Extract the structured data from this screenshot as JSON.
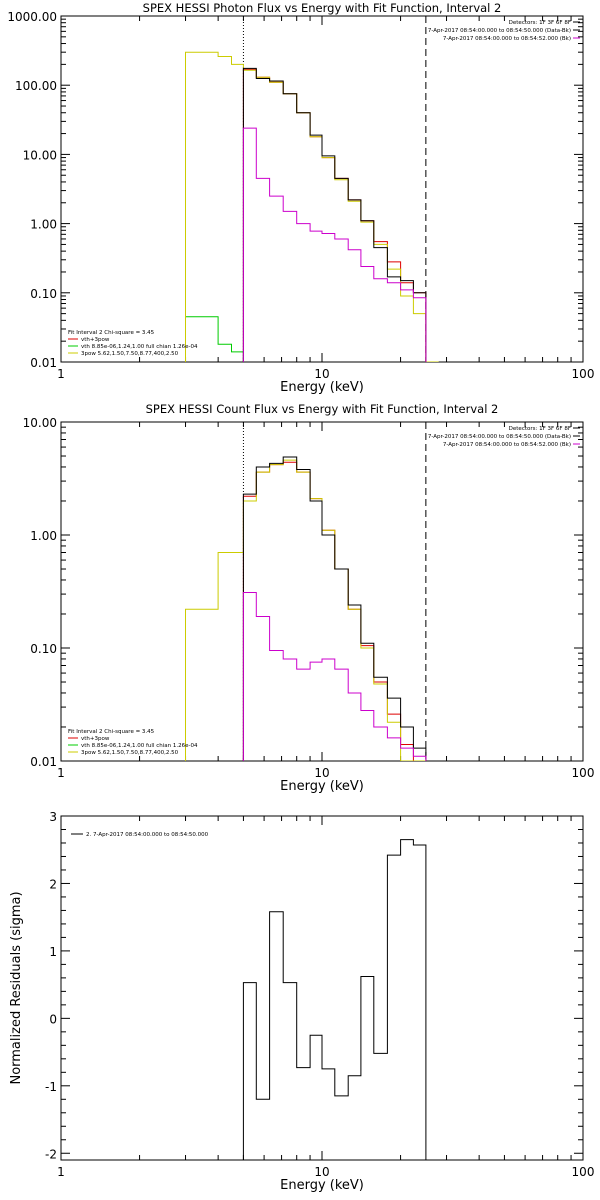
{
  "chart_data": [
    {
      "type": "line",
      "title": "SPEX HESSI Photon Flux vs Energy with Fit Function, Interval 2",
      "xlabel": "Energy (keV)",
      "ylabel": "",
      "xscale": "log",
      "yscale": "log",
      "xlim": [
        1,
        100
      ],
      "ylim": [
        0.01,
        1000
      ],
      "x_ticks": [
        {
          "value": 1,
          "label": "1"
        },
        {
          "value": 10,
          "label": "10"
        },
        {
          "value": 100,
          "label": "100"
        }
      ],
      "y_ticks": [
        {
          "value": 0.01,
          "label": "0.01"
        },
        {
          "value": 0.1,
          "label": "0.10"
        },
        {
          "value": 1,
          "label": "1.00"
        },
        {
          "value": 10,
          "label": "10.00"
        },
        {
          "value": 100,
          "label": "100.00"
        },
        {
          "value": 1000,
          "label": "1000.00"
        }
      ],
      "vlines": [
        {
          "x": 5.0,
          "style": "dotted",
          "color": "#000000"
        },
        {
          "x": 25.0,
          "style": "dashed",
          "color": "#000000"
        }
      ],
      "header_right": [
        {
          "text": "Detectors: 1F 3F 6F 8F",
          "color": "#000000"
        },
        {
          "text": "7-Apr-2017 08:54:00.000 to 08:54:50.000 (Data-Bk)",
          "color": "#000000"
        },
        {
          "text": "7-Apr-2017 08:54:00.000 to 08:54:52.000 (Bk)",
          "color": "#cc00cc"
        }
      ],
      "legend_title": "Fit Interval 2   Chi-square = 3.45",
      "legend_position": "bottom-left",
      "edges": [
        3.0,
        3.5,
        4.0,
        4.5,
        5.0,
        5.6,
        6.3,
        7.1,
        8.0,
        9.0,
        10.0,
        11.2,
        12.6,
        14.1,
        15.8,
        17.8,
        20.0,
        22.4,
        25.0,
        28.0
      ],
      "series": [
        {
          "name": "vth+3pow",
          "color": "#dd0000",
          "style": "step",
          "values": [
            null,
            null,
            null,
            null,
            170,
            130,
            110,
            75,
            40,
            18,
            9,
            4.5,
            2.2,
            1.1,
            0.55,
            0.28,
            0.14,
            0.1,
            null
          ]
        },
        {
          "name": "vth 8.85e-06,1.24,1.00  full chian 1.26e-04",
          "color": "#00cc00",
          "style": "step",
          "values": [
            0.045,
            0.045,
            0.018,
            0.014,
            null,
            null,
            null,
            null,
            null,
            null,
            null,
            null,
            null,
            null,
            null,
            null,
            null,
            null,
            null
          ]
        },
        {
          "name": "3pow 5.62,1.50,7.50,8.77,400,2.50",
          "color": "#cccc00",
          "style": "step",
          "values": [
            300,
            300,
            260,
            200,
            165,
            130,
            110,
            75,
            40,
            18,
            9,
            4.3,
            2.1,
            1.05,
            0.5,
            0.22,
            0.09,
            0.05,
            0.01
          ]
        },
        {
          "name": "Data-Bk",
          "color": "#000000",
          "style": "step",
          "values": [
            null,
            null,
            null,
            null,
            175,
            125,
            115,
            75,
            40,
            19,
            9.5,
            4.5,
            2.2,
            1.1,
            0.45,
            0.17,
            0.15,
            0.1,
            null
          ]
        },
        {
          "name": "Bk",
          "color": "#cc00cc",
          "style": "step",
          "values": [
            null,
            null,
            null,
            null,
            24,
            4.5,
            2.5,
            1.5,
            1.0,
            0.78,
            0.72,
            0.6,
            0.42,
            0.24,
            0.16,
            0.14,
            0.11,
            0.085,
            null
          ]
        }
      ],
      "legend": [
        {
          "text": "vth+3pow",
          "color": "#dd0000"
        },
        {
          "text": "vth 8.85e-06,1.24,1.00  full chian 1.26e-04",
          "color": "#00cc00"
        },
        {
          "text": "3pow 5.62,1.50,7.50,8.77,400,2.50",
          "color": "#cccc00"
        }
      ]
    },
    {
      "type": "line",
      "title": "SPEX HESSI Count Flux vs Energy with Fit Function, Interval 2",
      "xlabel": "Energy (keV)",
      "ylabel": "",
      "xscale": "log",
      "yscale": "log",
      "xlim": [
        1,
        100
      ],
      "ylim": [
        0.01,
        10
      ],
      "x_ticks": [
        {
          "value": 1,
          "label": "1"
        },
        {
          "value": 10,
          "label": "10"
        },
        {
          "value": 100,
          "label": "100"
        }
      ],
      "y_ticks": [
        {
          "value": 0.01,
          "label": "0.01"
        },
        {
          "value": 0.1,
          "label": "0.10"
        },
        {
          "value": 1,
          "label": "1.00"
        },
        {
          "value": 10,
          "label": "10.00"
        }
      ],
      "vlines": [
        {
          "x": 5.0,
          "style": "dotted",
          "color": "#000000"
        },
        {
          "x": 25.0,
          "style": "dashed",
          "color": "#000000"
        }
      ],
      "header_right": [
        {
          "text": "Detectors: 1F 3F 6F 8F",
          "color": "#000000"
        },
        {
          "text": "7-Apr-2017 08:54:00.000 to 08:54:50.000 (Data-Bk)",
          "color": "#000000"
        },
        {
          "text": "7-Apr-2017 08:54:00.000 to 08:54:52.000 (Bk)",
          "color": "#cc00cc"
        }
      ],
      "legend_title": "Fit Interval 2   Chi-square = 3.45",
      "legend_position": "bottom-left",
      "edges": [
        3.0,
        4.0,
        5.0,
        5.6,
        6.3,
        7.1,
        8.0,
        9.0,
        10.0,
        11.2,
        12.6,
        14.1,
        15.8,
        17.8,
        20.0,
        22.4,
        25.0
      ],
      "series": [
        {
          "name": "vth+3pow",
          "color": "#dd0000",
          "style": "step",
          "values": [
            null,
            null,
            2.2,
            3.6,
            4.2,
            4.4,
            3.6,
            2.1,
            1.1,
            0.5,
            0.22,
            0.105,
            0.05,
            0.026,
            0.014,
            0.01
          ]
        },
        {
          "name": "vth 8.85e-06,1.24,1.00  full chian 1.26e-04",
          "color": "#00cc00",
          "style": "step",
          "values": [
            null,
            null,
            null,
            null,
            null,
            null,
            null,
            null,
            null,
            null,
            null,
            null,
            null,
            null,
            null,
            null
          ]
        },
        {
          "name": "3pow 5.62,1.50,7.50,8.77,400,2.50",
          "color": "#cccc00",
          "style": "step",
          "values": [
            0.22,
            0.7,
            2.0,
            3.6,
            4.2,
            4.6,
            3.6,
            2.1,
            1.1,
            0.5,
            0.22,
            0.1,
            0.048,
            0.022,
            0.009,
            0.006
          ]
        },
        {
          "name": "Data-Bk",
          "color": "#000000",
          "style": "step",
          "values": [
            null,
            null,
            2.3,
            4.0,
            4.3,
            4.9,
            3.8,
            2.0,
            1.0,
            0.5,
            0.24,
            0.11,
            0.055,
            0.036,
            0.02,
            0.013
          ]
        },
        {
          "name": "Bk",
          "color": "#cc00cc",
          "style": "step",
          "values": [
            null,
            null,
            0.31,
            0.19,
            0.095,
            0.08,
            0.065,
            0.075,
            0.08,
            0.065,
            0.04,
            0.028,
            0.02,
            0.016,
            0.013,
            0.011
          ]
        }
      ],
      "legend": [
        {
          "text": "vth+3pow",
          "color": "#dd0000"
        },
        {
          "text": "vth 8.85e-06,1.24,1.00  full chian 1.26e-04",
          "color": "#00cc00"
        },
        {
          "text": "3pow 5.62,1.50,7.50,8.77,400,2.50",
          "color": "#cccc00"
        }
      ]
    },
    {
      "type": "line",
      "title": "",
      "xlabel": "Energy (keV)",
      "ylabel": "Normalized Residuals (sigma)",
      "xscale": "log",
      "yscale": "linear",
      "xlim": [
        1,
        100
      ],
      "ylim": [
        -2.1,
        3.0
      ],
      "x_ticks": [
        {
          "value": 1,
          "label": "1"
        },
        {
          "value": 10,
          "label": "10"
        },
        {
          "value": 100,
          "label": "100"
        }
      ],
      "y_ticks": [
        {
          "value": -2,
          "label": "-2"
        },
        {
          "value": -1,
          "label": "-1"
        },
        {
          "value": 0,
          "label": "0"
        },
        {
          "value": 1,
          "label": "1"
        },
        {
          "value": 2,
          "label": "2"
        },
        {
          "value": 3,
          "label": "3"
        }
      ],
      "vlines": [],
      "header_right": [],
      "legend_title": "",
      "legend_position": "top-left",
      "edges": [
        5.0,
        5.6,
        6.3,
        7.1,
        8.0,
        9.0,
        10.0,
        11.2,
        12.6,
        14.1,
        15.8,
        17.8,
        20.0,
        22.4,
        25.0
      ],
      "series": [
        {
          "name": "2.  7-Apr-2017 08:54:00.000 to 08:54:50.000",
          "color": "#000000",
          "style": "step",
          "values": [
            0.53,
            -1.2,
            1.58,
            0.53,
            -0.73,
            -0.25,
            -0.75,
            -1.15,
            -0.85,
            0.62,
            -0.52,
            2.42,
            2.65,
            2.57
          ]
        }
      ],
      "legend": [
        {
          "text": "2.  7-Apr-2017 08:54:00.000 to 08:54:50.000",
          "color": "#000000"
        }
      ]
    }
  ]
}
